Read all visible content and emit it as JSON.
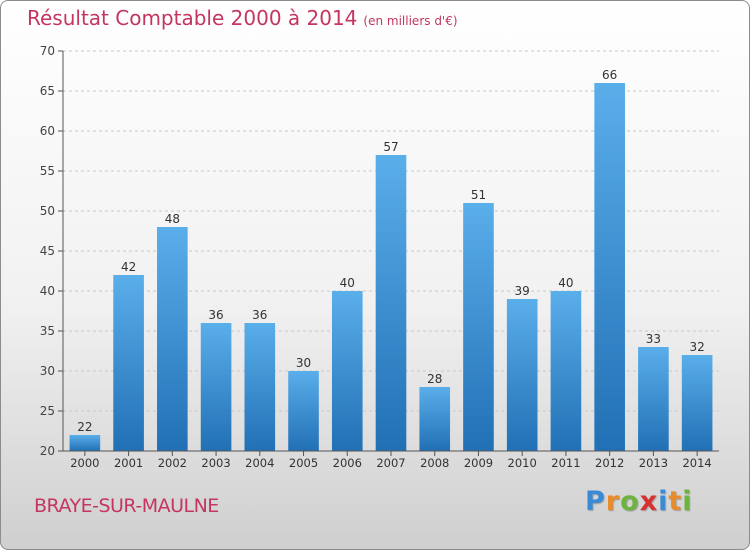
{
  "title": "Résultat Comptable 2000 à 2014",
  "title_unit": "(en milliers d'€)",
  "town": "BRAYE-SUR-MAULNE",
  "logo": {
    "letters": [
      "P",
      "r",
      "o",
      "x",
      "i",
      "t",
      "i"
    ],
    "colors": [
      "#3a8ad6",
      "#e88b2a",
      "#6cb33f",
      "#d9302f",
      "#3a8ad6",
      "#e88b2a",
      "#6cb33f"
    ]
  },
  "chart_data": {
    "type": "bar",
    "title": "Résultat Comptable 2000 à 2014",
    "xlabel": "",
    "ylabel": "",
    "ylim": [
      20,
      70
    ],
    "yticks": [
      20,
      25,
      30,
      35,
      40,
      45,
      50,
      55,
      60,
      65,
      70
    ],
    "grid": true,
    "categories": [
      "2000",
      "2001",
      "2002",
      "2003",
      "2004",
      "2005",
      "2006",
      "2007",
      "2008",
      "2009",
      "2010",
      "2011",
      "2012",
      "2013",
      "2014"
    ],
    "values": [
      22,
      42,
      48,
      36,
      36,
      30,
      40,
      57,
      28,
      51,
      39,
      40,
      66,
      33,
      32
    ],
    "bar_color": "#3d93d8"
  }
}
